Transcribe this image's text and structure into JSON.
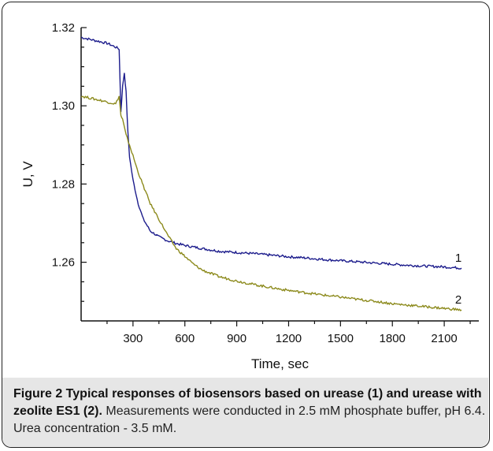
{
  "chart_data": {
    "type": "line",
    "xlabel": "Time, sec",
    "ylabel": "U, V",
    "xlim": [
      0,
      2300
    ],
    "ylim": [
      1.245,
      1.32
    ],
    "x_ticks": [
      300,
      600,
      900,
      1200,
      1500,
      1800,
      2100
    ],
    "y_ticks": [
      1.26,
      1.28,
      1.3,
      1.32
    ],
    "y_tick_labels": [
      "1.26",
      "1.28",
      "1.30",
      "1.32"
    ],
    "grid": false,
    "series": [
      {
        "name": "1",
        "color": "#1c1c8c",
        "x": [
          0,
          50,
          100,
          150,
          200,
          220,
          230,
          240,
          250,
          260,
          270,
          280,
          300,
          330,
          360,
          400,
          450,
          500,
          550,
          600,
          700,
          800,
          900,
          1000,
          1100,
          1200,
          1300,
          1400,
          1500,
          1600,
          1700,
          1800,
          1900,
          2000,
          2100,
          2200
        ],
        "y": [
          1.3175,
          1.317,
          1.3165,
          1.316,
          1.315,
          1.3145,
          1.2985,
          1.305,
          1.3085,
          1.3035,
          1.2935,
          1.287,
          1.281,
          1.275,
          1.271,
          1.268,
          1.2665,
          1.2655,
          1.2648,
          1.2643,
          1.2635,
          1.2628,
          1.2625,
          1.2622,
          1.2618,
          1.2614,
          1.2611,
          1.2607,
          1.2604,
          1.2601,
          1.2598,
          1.2595,
          1.2592,
          1.259,
          1.2588,
          1.2585
        ]
      },
      {
        "name": "2",
        "color": "#8c8a1c",
        "x": [
          0,
          50,
          100,
          150,
          200,
          220,
          230,
          240,
          250,
          260,
          280,
          300,
          330,
          360,
          400,
          450,
          500,
          550,
          600,
          650,
          700,
          800,
          900,
          1000,
          1100,
          1200,
          1300,
          1400,
          1500,
          1600,
          1700,
          1800,
          1900,
          2000,
          2100,
          2200
        ],
        "y": [
          1.3025,
          1.302,
          1.3015,
          1.301,
          1.3005,
          1.3025,
          1.2975,
          1.2965,
          1.2945,
          1.2925,
          1.29,
          1.2872,
          1.283,
          1.2795,
          1.275,
          1.271,
          1.267,
          1.2635,
          1.2615,
          1.2595,
          1.258,
          1.2563,
          1.2552,
          1.2543,
          1.2535,
          1.2528,
          1.2522,
          1.2516,
          1.2511,
          1.2505,
          1.25,
          1.2494,
          1.249,
          1.2486,
          1.2482,
          1.2478
        ]
      }
    ],
    "annotations": [
      "1",
      "2"
    ]
  },
  "caption": {
    "figure_label": "Figure 2 Typical responses of biosensors based on urease (1) and urease with zeolite ES1 (2).",
    "text": "Measurements were conducted in 2.5 mM phosphate buffer, pH 6.4. Urea concentration - 3.5 mM."
  }
}
